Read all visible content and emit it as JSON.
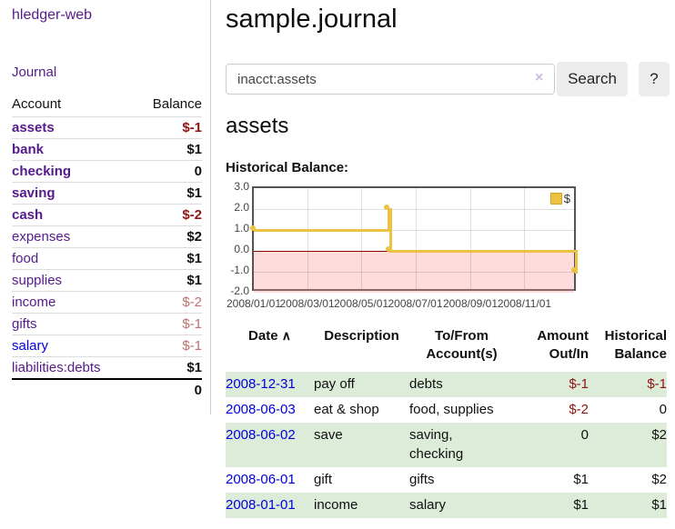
{
  "sidebar": {
    "brand": "hledger-web",
    "nav_journal": "Journal",
    "accounts_header": {
      "account": "Account",
      "balance": "Balance"
    },
    "accounts": [
      {
        "name": "assets",
        "depth": 1,
        "bold": true,
        "blue": false,
        "balance": "$-1",
        "balance_style": "neg-strong"
      },
      {
        "name": "bank",
        "depth": 2,
        "bold": true,
        "blue": false,
        "balance": "$1",
        "balance_style": "pos"
      },
      {
        "name": "checking",
        "depth": 3,
        "bold": true,
        "blue": false,
        "balance": "0",
        "balance_style": "pos"
      },
      {
        "name": "saving",
        "depth": 3,
        "bold": true,
        "blue": false,
        "balance": "$1",
        "balance_style": "pos"
      },
      {
        "name": "cash",
        "depth": 2,
        "bold": true,
        "blue": false,
        "balance": "$-2",
        "balance_style": "neg-strong"
      },
      {
        "name": "expenses",
        "depth": 1,
        "bold": false,
        "blue": false,
        "balance": "$2",
        "balance_style": "pos"
      },
      {
        "name": "food",
        "depth": 2,
        "bold": false,
        "blue": false,
        "balance": "$1",
        "balance_style": "pos"
      },
      {
        "name": "supplies",
        "depth": 2,
        "bold": false,
        "blue": false,
        "balance": "$1",
        "balance_style": "pos"
      },
      {
        "name": "income",
        "depth": 1,
        "bold": false,
        "blue": false,
        "balance": "$-2",
        "balance_style": "neg-soft"
      },
      {
        "name": "gifts",
        "depth": 2,
        "bold": false,
        "blue": false,
        "balance": "$-1",
        "balance_style": "neg-soft"
      },
      {
        "name": "salary",
        "depth": 2,
        "bold": false,
        "blue": true,
        "balance": "$-1",
        "balance_style": "neg-soft"
      },
      {
        "name": "liabilities:debts",
        "depth": 1,
        "bold": false,
        "blue": false,
        "balance": "$1",
        "balance_style": "pos"
      }
    ],
    "total": "0"
  },
  "header": {
    "title": "sample.journal",
    "search_value": "inacct:assets",
    "clear_icon": "×",
    "search_button": "Search",
    "help_button": "?"
  },
  "content": {
    "account_heading": "assets",
    "chart_label": "Historical Balance:"
  },
  "chart_data": {
    "type": "line",
    "step": true,
    "title": "Historical Balance",
    "series": [
      {
        "name": "$",
        "color": "#edc240",
        "points": [
          [
            "2008-01-01",
            1
          ],
          [
            "2008-06-01",
            2
          ],
          [
            "2008-06-03",
            0
          ],
          [
            "2008-12-31",
            -1
          ]
        ]
      }
    ],
    "x_range": [
      "2008-01-01",
      "2008-12-31"
    ],
    "ylim": [
      -2,
      3
    ],
    "yticks": [
      {
        "v": 3,
        "label": "3.0"
      },
      {
        "v": 2,
        "label": "2.0"
      },
      {
        "v": 1,
        "label": "1.0"
      },
      {
        "v": 0,
        "label": "0.0"
      },
      {
        "v": -1,
        "label": "-1.0"
      },
      {
        "v": -2,
        "label": "-2.0"
      }
    ],
    "xticks": [
      {
        "v": "2008-01-01",
        "label": "2008/01/01"
      },
      {
        "v": "2008-03-01",
        "label": "2008/03/01"
      },
      {
        "v": "2008-05-01",
        "label": "2008/05/01"
      },
      {
        "v": "2008-07-01",
        "label": "2008/07/01"
      },
      {
        "v": "2008-09-01",
        "label": "2008/09/01"
      },
      {
        "v": "2008-11-01",
        "label": "2008/11/01"
      }
    ],
    "legend": {
      "label": "$",
      "position": "top-right"
    },
    "negative_region": true,
    "zero_line_color": "#8b0000",
    "grid": true
  },
  "transactions": {
    "headers": {
      "date": "Date",
      "sort_icon": "∧",
      "description": "Description",
      "accounts": "To/From Account(s)",
      "amount": "Amount Out/In",
      "balance": "Historical Balance"
    },
    "rows": [
      {
        "date": "2008-12-31",
        "description": "pay off",
        "accounts": "debts",
        "amount": "$-1",
        "amount_negative": true,
        "balance": "$-1",
        "balance_negative": true
      },
      {
        "date": "2008-06-03",
        "description": "eat & shop",
        "accounts": "food, supplies",
        "amount": "$-2",
        "amount_negative": true,
        "balance": "0",
        "balance_negative": false
      },
      {
        "date": "2008-06-02",
        "description": "save",
        "accounts": "saving,\nchecking",
        "amount": "0",
        "amount_negative": false,
        "balance": "$2",
        "balance_negative": false
      },
      {
        "date": "2008-06-01",
        "description": "gift",
        "accounts": "gifts",
        "amount": "$1",
        "amount_negative": false,
        "balance": "$2",
        "balance_negative": false
      },
      {
        "date": "2008-01-01",
        "description": "income",
        "accounts": "salary",
        "amount": "$1",
        "amount_negative": false,
        "balance": "$1",
        "balance_negative": false
      }
    ]
  }
}
